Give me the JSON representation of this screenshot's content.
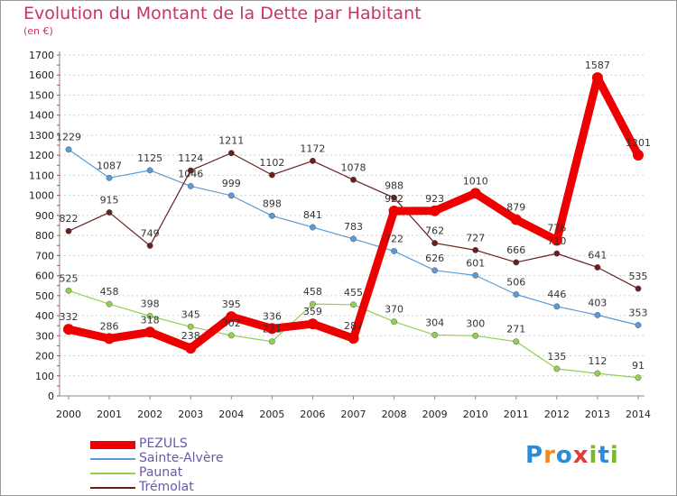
{
  "header": {
    "title": "Evolution du Montant de la Dette par Habitant",
    "subtitle": "(en €)"
  },
  "logo": {
    "text": "Proxiti",
    "colors": [
      "#2a8bd8",
      "#f08a1c",
      "#2a8bd8",
      "#e03a3a",
      "#7ab82e",
      "#2a8bd8",
      "#7ab82e"
    ]
  },
  "chart_data": {
    "type": "line",
    "title": "Evolution du Montant de la Dette par Habitant",
    "ylabel": "",
    "xlabel": "",
    "ylim": [
      0,
      1700
    ],
    "yticks": [
      0,
      100,
      200,
      300,
      400,
      500,
      600,
      700,
      800,
      900,
      1000,
      1100,
      1200,
      1300,
      1400,
      1500,
      1600,
      1700
    ],
    "grid": true,
    "legend_position": "bottom-left",
    "x": [
      "2000",
      "2001",
      "2002",
      "2003",
      "2004",
      "2005",
      "2006",
      "2007",
      "2008",
      "2009",
      "2010",
      "2011",
      "2012",
      "2013",
      "2014"
    ],
    "series": [
      {
        "name": "PEZULS",
        "color": "#ee0000",
        "values": [
          332,
          286,
          318,
          238,
          395,
          336,
          359,
          287,
          922,
          923,
          1010,
          879,
          776,
          1587,
          1201
        ]
      },
      {
        "name": "Sainte-Alvère",
        "color": "#5b9bd5",
        "values": [
          1229,
          1087,
          1125,
          1046,
          999,
          898,
          841,
          783,
          722,
          626,
          601,
          506,
          446,
          403,
          353
        ]
      },
      {
        "name": "Paunat",
        "color": "#92d050",
        "values": [
          525,
          458,
          398,
          345,
          302,
          271,
          458,
          455,
          370,
          304,
          300,
          271,
          135,
          112,
          91
        ]
      },
      {
        "name": "Trémolat",
        "color": "#6b1e1e",
        "values": [
          822,
          915,
          749,
          1124,
          1211,
          1102,
          1172,
          1078,
          988,
          762,
          727,
          666,
          710,
          641,
          535
        ]
      }
    ]
  }
}
